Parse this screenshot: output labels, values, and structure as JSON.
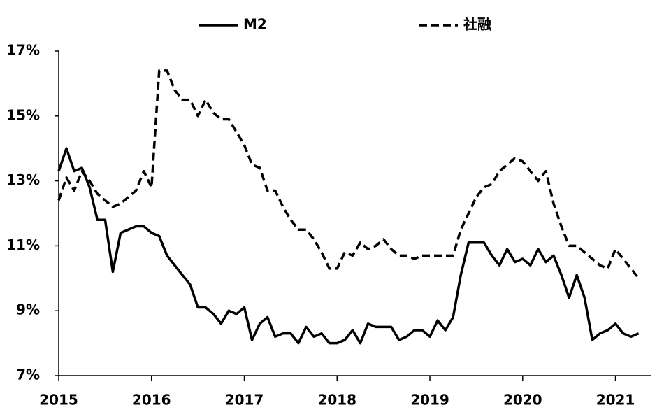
{
  "chart_data": {
    "type": "line",
    "legend": "top",
    "x": [
      2015,
      2015.083,
      2015.167,
      2015.25,
      2015.333,
      2015.417,
      2015.5,
      2015.583,
      2015.667,
      2015.75,
      2015.833,
      2015.917,
      2016,
      2016.083,
      2016.167,
      2016.25,
      2016.333,
      2016.417,
      2016.5,
      2016.583,
      2016.667,
      2016.75,
      2016.833,
      2016.917,
      2017,
      2017.083,
      2017.167,
      2017.25,
      2017.333,
      2017.417,
      2017.5,
      2017.583,
      2017.667,
      2017.75,
      2017.833,
      2017.917,
      2018,
      2018.083,
      2018.167,
      2018.25,
      2018.333,
      2018.417,
      2018.5,
      2018.583,
      2018.667,
      2018.75,
      2018.833,
      2018.917,
      2019,
      2019.083,
      2019.167,
      2019.25,
      2019.333,
      2019.417,
      2019.5,
      2019.583,
      2019.667,
      2019.75,
      2019.833,
      2019.917,
      2020,
      2020.083,
      2020.167,
      2020.25,
      2020.333,
      2020.417,
      2020.5,
      2020.583,
      2020.667,
      2020.75,
      2020.833,
      2020.917,
      2021,
      2021.083,
      2021.167,
      2021.25
    ],
    "series": [
      {
        "name": "M2",
        "color": "#000000",
        "dash": false,
        "values": [
          13.3,
          14.0,
          13.3,
          13.4,
          12.8,
          11.8,
          11.8,
          10.2,
          11.4,
          11.5,
          11.6,
          11.6,
          11.4,
          11.3,
          10.7,
          10.4,
          10.1,
          9.8,
          9.1,
          9.1,
          8.9,
          8.6,
          9.0,
          8.9,
          9.1,
          8.1,
          8.6,
          8.8,
          8.2,
          8.3,
          8.3,
          8.0,
          8.5,
          8.2,
          8.3,
          8.0,
          8.0,
          8.1,
          8.4,
          8.0,
          8.6,
          8.5,
          8.5,
          8.5,
          8.1,
          8.2,
          8.4,
          8.4,
          8.2,
          8.7,
          8.4,
          8.8,
          10.1,
          11.1,
          11.1,
          11.1,
          10.7,
          10.4,
          10.9,
          10.5,
          10.6,
          10.4,
          10.9,
          10.5,
          10.7,
          10.1,
          9.4,
          10.1,
          9.4,
          8.1,
          8.3,
          8.4,
          8.6,
          8.3,
          8.2,
          8.3
        ]
      },
      {
        "name": "社融",
        "color": "#000000",
        "dash": true,
        "values": [
          12.4,
          13.1,
          12.7,
          13.3,
          13.0,
          12.6,
          12.4,
          12.2,
          12.3,
          12.5,
          12.7,
          13.3,
          12.8,
          16.4,
          16.4,
          15.8,
          15.5,
          15.5,
          15.0,
          15.5,
          15.1,
          14.9,
          14.9,
          14.5,
          14.1,
          13.5,
          13.4,
          12.7,
          12.7,
          12.2,
          11.8,
          11.5,
          11.5,
          11.2,
          10.8,
          10.3,
          10.3,
          10.8,
          10.7,
          11.1,
          10.9,
          11.0,
          11.2,
          10.9,
          10.7,
          10.7,
          10.6,
          10.7,
          10.7,
          10.7,
          10.7,
          10.7,
          11.5,
          12.0,
          12.5,
          12.8,
          12.9,
          13.3,
          13.5,
          13.7,
          13.6,
          13.3,
          13.0,
          13.3,
          12.3,
          11.6,
          11.0,
          11.0,
          10.8,
          10.6,
          10.4,
          10.3,
          10.9,
          10.6,
          10.3,
          10.0
        ]
      }
    ],
    "xlim": [
      2015,
      2021.35
    ],
    "xticks": [
      2015,
      2016,
      2017,
      2018,
      2019,
      2020,
      2021
    ],
    "ylim": [
      7,
      17
    ],
    "yticks": [
      {
        "value": 7,
        "label": "7%"
      },
      {
        "value": 9,
        "label": "9%"
      },
      {
        "value": 11,
        "label": "11%"
      },
      {
        "value": 13,
        "label": "13%"
      },
      {
        "value": 15,
        "label": "15%"
      },
      {
        "value": 17,
        "label": "17%"
      }
    ],
    "grid": false
  }
}
